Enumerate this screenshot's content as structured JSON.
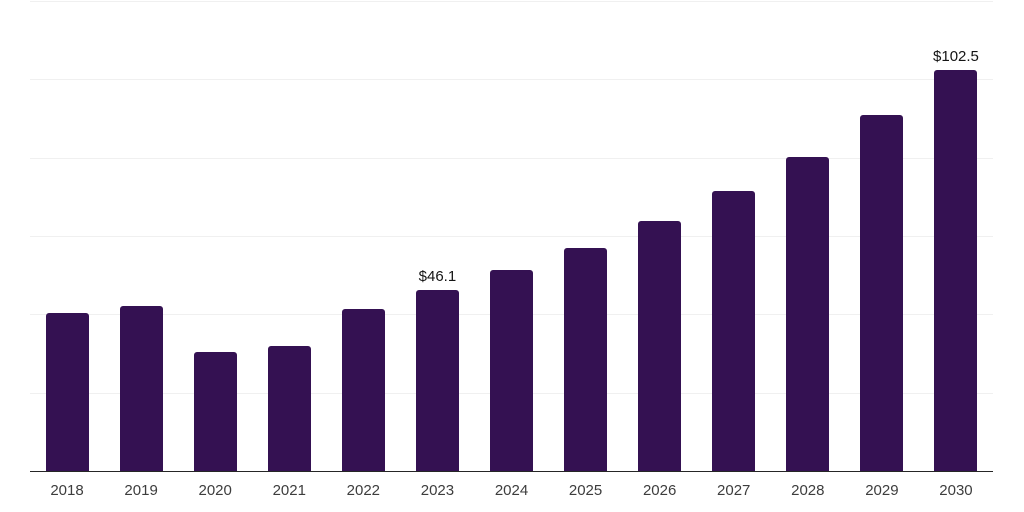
{
  "chart_data": {
    "type": "bar",
    "title": "",
    "xlabel": "",
    "ylabel": "",
    "categories": [
      "2018",
      "2019",
      "2020",
      "2021",
      "2022",
      "2023",
      "2024",
      "2025",
      "2026",
      "2027",
      "2028",
      "2029",
      "2030"
    ],
    "values": [
      40.4,
      42.1,
      30.3,
      31.8,
      41.4,
      46.1,
      51.4,
      57.0,
      63.8,
      71.5,
      80.2,
      90.8,
      102.5
    ],
    "data_labels": {
      "2023": "$46.1",
      "2030": "$102.5"
    },
    "ylim": [
      0,
      120
    ],
    "gridline_step": 20,
    "grid": true,
    "legend": false,
    "colors": {
      "bar": "#341152",
      "gridline": "#f0f0f0",
      "axis_line": "#262626",
      "tick_label": "#3d3d3d",
      "data_label": "#141414",
      "background": "#ffffff"
    }
  }
}
